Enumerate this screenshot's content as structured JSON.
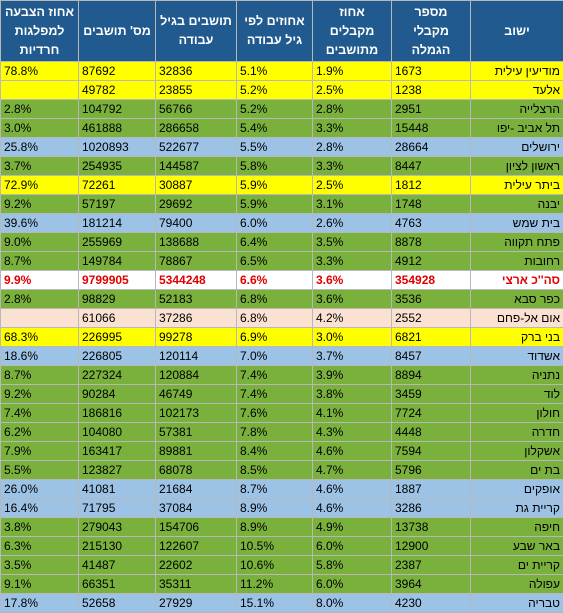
{
  "colors": {
    "header_bg": "#215a8e",
    "header_text": "#ffffff",
    "total_text": "#e00000",
    "green": "#79b13c",
    "yellow": "#ffff00",
    "blue": "#9cc2e5",
    "white": "#ffffff",
    "peach": "#fbe1d2"
  },
  "headers": [
    "ישוב",
    "מספר מקבלי הגמלה",
    "אחוז מקבלים מתושבים",
    "אחוזים לפי גיל עבודה",
    "תושבים בגיל עבודה",
    "מס' תושבים",
    "אחוז הצבעה למפלגות חרדיות"
  ],
  "rows": [
    {
      "city": "מודיעין עילית",
      "recipients": "1673",
      "pct_residents": "1.9%",
      "pct_working_age": "5.1%",
      "working_age": "32836",
      "residents": "87692",
      "haredi_vote": "78.8%",
      "color": "yellow"
    },
    {
      "city": "אלעד",
      "recipients": "1238",
      "pct_residents": "2.5%",
      "pct_working_age": "5.2%",
      "working_age": "23855",
      "residents": "49782",
      "haredi_vote": "",
      "color": "yellow"
    },
    {
      "city": "הרצלייה",
      "recipients": "2951",
      "pct_residents": "2.8%",
      "pct_working_age": "5.2%",
      "working_age": "56766",
      "residents": "104792",
      "haredi_vote": "2.8%",
      "color": "green"
    },
    {
      "city": "תל אביב -יפו",
      "recipients": "15448",
      "pct_residents": "3.3%",
      "pct_working_age": "5.4%",
      "working_age": "286658",
      "residents": "461888",
      "haredi_vote": "3.0%",
      "color": "green"
    },
    {
      "city": "ירושלים",
      "recipients": "28664",
      "pct_residents": "2.8%",
      "pct_working_age": "5.5%",
      "working_age": "522677",
      "residents": "1020893",
      "haredi_vote": "25.8%",
      "color": "blue"
    },
    {
      "city": "ראשון לציון",
      "recipients": "8447",
      "pct_residents": "3.3%",
      "pct_working_age": "5.8%",
      "working_age": "144587",
      "residents": "254935",
      "haredi_vote": "3.7%",
      "color": "green"
    },
    {
      "city": "ביתר עילית",
      "recipients": "1812",
      "pct_residents": "2.5%",
      "pct_working_age": "5.9%",
      "working_age": "30887",
      "residents": "72261",
      "haredi_vote": "72.9%",
      "color": "yellow"
    },
    {
      "city": "יבנה",
      "recipients": "1748",
      "pct_residents": "3.1%",
      "pct_working_age": "5.9%",
      "working_age": "29692",
      "residents": "57197",
      "haredi_vote": "9.2%",
      "color": "green"
    },
    {
      "city": "בית שמש",
      "recipients": "4763",
      "pct_residents": "2.6%",
      "pct_working_age": "6.0%",
      "working_age": "79400",
      "residents": "181214",
      "haredi_vote": "39.6%",
      "color": "blue"
    },
    {
      "city": "פתח תקווה",
      "recipients": "8878",
      "pct_residents": "3.5%",
      "pct_working_age": "6.4%",
      "working_age": "138688",
      "residents": "255969",
      "haredi_vote": "9.0%",
      "color": "green"
    },
    {
      "city": "רחובות",
      "recipients": "4912",
      "pct_residents": "3.3%",
      "pct_working_age": "6.5%",
      "working_age": "78867",
      "residents": "149784",
      "haredi_vote": "8.7%",
      "color": "green"
    },
    {
      "city": "סה''כ ארצי",
      "recipients": "354928",
      "pct_residents": "3.6%",
      "pct_working_age": "6.6%",
      "working_age": "5344248",
      "residents": "9799905",
      "haredi_vote": "9.9%",
      "color": "white",
      "total": true
    },
    {
      "city": "כפר סבא",
      "recipients": "3536",
      "pct_residents": "3.6%",
      "pct_working_age": "6.8%",
      "working_age": "52183",
      "residents": "98829",
      "haredi_vote": "2.8%",
      "color": "green"
    },
    {
      "city": "אום אל-פחם",
      "recipients": "2552",
      "pct_residents": "4.2%",
      "pct_working_age": "6.8%",
      "working_age": "37286",
      "residents": "61066",
      "haredi_vote": "",
      "color": "peach"
    },
    {
      "city": "בני ברק",
      "recipients": "6821",
      "pct_residents": "3.0%",
      "pct_working_age": "6.9%",
      "working_age": "99278",
      "residents": "226995",
      "haredi_vote": "68.3%",
      "color": "yellow"
    },
    {
      "city": "אשדוד",
      "recipients": "8457",
      "pct_residents": "3.7%",
      "pct_working_age": "7.0%",
      "working_age": "120114",
      "residents": "226805",
      "haredi_vote": "18.6%",
      "color": "blue"
    },
    {
      "city": "נתניה",
      "recipients": "8894",
      "pct_residents": "3.9%",
      "pct_working_age": "7.4%",
      "working_age": "120884",
      "residents": "227324",
      "haredi_vote": "8.7%",
      "color": "green"
    },
    {
      "city": "לוד",
      "recipients": "3459",
      "pct_residents": "3.8%",
      "pct_working_age": "7.4%",
      "working_age": "46749",
      "residents": "90284",
      "haredi_vote": "9.2%",
      "color": "green"
    },
    {
      "city": "חולון",
      "recipients": "7724",
      "pct_residents": "4.1%",
      "pct_working_age": "7.6%",
      "working_age": "102173",
      "residents": "186816",
      "haredi_vote": "7.4%",
      "color": "green"
    },
    {
      "city": "חדרה",
      "recipients": "4448",
      "pct_residents": "4.3%",
      "pct_working_age": "7.8%",
      "working_age": "57381",
      "residents": "104080",
      "haredi_vote": "6.2%",
      "color": "green"
    },
    {
      "city": "אשקלון",
      "recipients": "7594",
      "pct_residents": "4.6%",
      "pct_working_age": "8.4%",
      "working_age": "89881",
      "residents": "163417",
      "haredi_vote": "7.9%",
      "color": "green"
    },
    {
      "city": "בת ים",
      "recipients": "5796",
      "pct_residents": "4.7%",
      "pct_working_age": "8.5%",
      "working_age": "68078",
      "residents": "123827",
      "haredi_vote": "5.5%",
      "color": "green"
    },
    {
      "city": "אופקים",
      "recipients": "1887",
      "pct_residents": "4.6%",
      "pct_working_age": "8.7%",
      "working_age": "21684",
      "residents": "41081",
      "haredi_vote": "26.0%",
      "color": "blue"
    },
    {
      "city": "קריית גת",
      "recipients": "3286",
      "pct_residents": "4.6%",
      "pct_working_age": "8.9%",
      "working_age": "37084",
      "residents": "71795",
      "haredi_vote": "16.4%",
      "color": "blue"
    },
    {
      "city": "חיפה",
      "recipients": "13738",
      "pct_residents": "4.9%",
      "pct_working_age": "8.9%",
      "working_age": "154706",
      "residents": "279043",
      "haredi_vote": "3.8%",
      "color": "green"
    },
    {
      "city": "באר שבע",
      "recipients": "12900",
      "pct_residents": "6.0%",
      "pct_working_age": "10.5%",
      "working_age": "122607",
      "residents": "215130",
      "haredi_vote": "6.3%",
      "color": "green"
    },
    {
      "city": "קריית ים",
      "recipients": "2387",
      "pct_residents": "5.8%",
      "pct_working_age": "10.6%",
      "working_age": "22602",
      "residents": "41487",
      "haredi_vote": "3.5%",
      "color": "green"
    },
    {
      "city": "עפולה",
      "recipients": "3964",
      "pct_residents": "6.0%",
      "pct_working_age": "11.2%",
      "working_age": "35311",
      "residents": "66351",
      "haredi_vote": "9.1%",
      "color": "green"
    },
    {
      "city": "טבריה",
      "recipients": "4230",
      "pct_residents": "8.0%",
      "pct_working_age": "15.1%",
      "working_age": "27929",
      "residents": "52658",
      "haredi_vote": "17.8%",
      "color": "blue"
    }
  ]
}
